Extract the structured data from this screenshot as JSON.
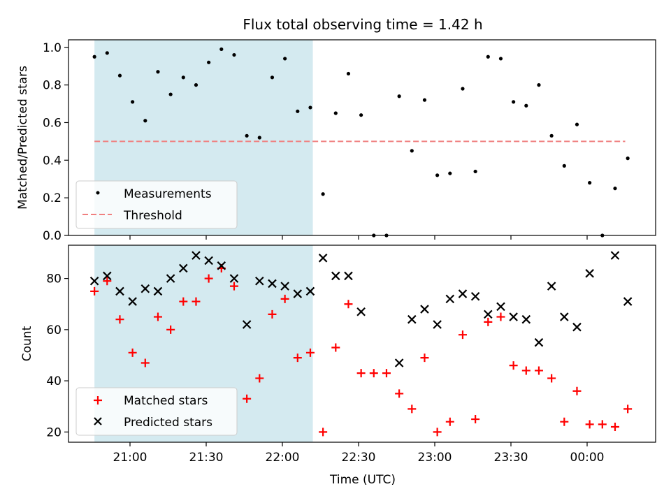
{
  "chart_data": [
    {
      "type": "scatter",
      "title": "Flux total observing time = 1.42 h",
      "xlabel": "",
      "ylabel": "Matched/Predicted stars",
      "ylim": [
        0,
        1.04
      ],
      "yticks": [
        "0.0",
        "0.2",
        "0.4",
        "0.6",
        "0.8",
        "1.0"
      ],
      "shaded_region": {
        "x_start": "20:46",
        "x_end": "22:12",
        "color": "#d4eaf0"
      },
      "threshold": {
        "name": "Threshold",
        "value": 0.5,
        "x_start": "20:46",
        "x_end": "00:15",
        "color": "#f08080"
      },
      "legend": {
        "position": "lower-left",
        "entries": [
          "Measurements",
          "Threshold"
        ]
      },
      "series": [
        {
          "name": "Measurements",
          "color": "#000000",
          "points": [
            [
              "20:46",
              0.95
            ],
            [
              "20:51",
              0.97
            ],
            [
              "20:56",
              0.85
            ],
            [
              "21:01",
              0.71
            ],
            [
              "21:06",
              0.61
            ],
            [
              "21:11",
              0.87
            ],
            [
              "21:16",
              0.75
            ],
            [
              "21:21",
              0.84
            ],
            [
              "21:26",
              0.8
            ],
            [
              "21:31",
              0.92
            ],
            [
              "21:36",
              0.99
            ],
            [
              "21:41",
              0.96
            ],
            [
              "21:46",
              0.53
            ],
            [
              "21:51",
              0.52
            ],
            [
              "21:56",
              0.84
            ],
            [
              "22:01",
              0.94
            ],
            [
              "22:06",
              0.66
            ],
            [
              "22:11",
              0.68
            ],
            [
              "22:16",
              0.22
            ],
            [
              "22:21",
              0.65
            ],
            [
              "22:26",
              0.86
            ],
            [
              "22:31",
              0.64
            ],
            [
              "22:36",
              0.0
            ],
            [
              "22:41",
              0.0
            ],
            [
              "22:46",
              0.74
            ],
            [
              "22:51",
              0.45
            ],
            [
              "22:56",
              0.72
            ],
            [
              "23:01",
              0.32
            ],
            [
              "23:06",
              0.33
            ],
            [
              "23:11",
              0.78
            ],
            [
              "23:16",
              0.34
            ],
            [
              "23:21",
              0.95
            ],
            [
              "23:26",
              0.94
            ],
            [
              "23:31",
              0.71
            ],
            [
              "23:36",
              0.69
            ],
            [
              "23:41",
              0.8
            ],
            [
              "23:46",
              0.53
            ],
            [
              "23:51",
              0.37
            ],
            [
              "23:56",
              0.59
            ],
            [
              "00:01",
              0.28
            ],
            [
              "00:06",
              0.0
            ],
            [
              "00:11",
              0.25
            ],
            [
              "00:16",
              0.41
            ]
          ]
        }
      ]
    },
    {
      "type": "scatter",
      "title": "",
      "xlabel": "Time (UTC)",
      "ylabel": "Count",
      "ylim": [
        16,
        93
      ],
      "yticks": [
        "20",
        "40",
        "60",
        "80"
      ],
      "x_ticks": [
        "21:00",
        "21:30",
        "22:00",
        "22:30",
        "23:00",
        "23:30",
        "00:00"
      ],
      "shaded_region": {
        "x_start": "20:46",
        "x_end": "22:12",
        "color": "#d4eaf0"
      },
      "legend": {
        "position": "lower-left",
        "entries": [
          "Matched stars",
          "Predicted stars"
        ]
      },
      "series": [
        {
          "name": "Matched stars",
          "marker": "plus",
          "color": "#ff0000",
          "points": [
            [
              "20:46",
              75
            ],
            [
              "20:51",
              79
            ],
            [
              "20:56",
              64
            ],
            [
              "21:01",
              51
            ],
            [
              "21:06",
              47
            ],
            [
              "21:11",
              65
            ],
            [
              "21:16",
              60
            ],
            [
              "21:21",
              71
            ],
            [
              "21:26",
              71
            ],
            [
              "21:31",
              80
            ],
            [
              "21:36",
              84
            ],
            [
              "21:41",
              77
            ],
            [
              "21:46",
              33
            ],
            [
              "21:51",
              41
            ],
            [
              "21:56",
              66
            ],
            [
              "22:01",
              72
            ],
            [
              "22:06",
              49
            ],
            [
              "22:11",
              51
            ],
            [
              "22:16",
              20
            ],
            [
              "22:21",
              53
            ],
            [
              "22:26",
              70
            ],
            [
              "22:31",
              43
            ],
            [
              "22:36",
              43
            ],
            [
              "22:41",
              43
            ],
            [
              "22:46",
              35
            ],
            [
              "22:51",
              29
            ],
            [
              "22:56",
              49
            ],
            [
              "23:01",
              20
            ],
            [
              "23:06",
              24
            ],
            [
              "23:11",
              58
            ],
            [
              "23:16",
              25
            ],
            [
              "23:21",
              63
            ],
            [
              "23:26",
              65
            ],
            [
              "23:31",
              46
            ],
            [
              "23:36",
              44
            ],
            [
              "23:41",
              44
            ],
            [
              "23:46",
              41
            ],
            [
              "23:51",
              24
            ],
            [
              "23:56",
              36
            ],
            [
              "00:01",
              23
            ],
            [
              "00:06",
              23
            ],
            [
              "00:11",
              22
            ],
            [
              "00:16",
              29
            ]
          ]
        },
        {
          "name": "Predicted stars",
          "marker": "x",
          "color": "#000000",
          "points": [
            [
              "20:46",
              79
            ],
            [
              "20:51",
              81
            ],
            [
              "20:56",
              75
            ],
            [
              "21:01",
              71
            ],
            [
              "21:06",
              76
            ],
            [
              "21:11",
              75
            ],
            [
              "21:16",
              80
            ],
            [
              "21:21",
              84
            ],
            [
              "21:26",
              89
            ],
            [
              "21:31",
              87
            ],
            [
              "21:36",
              85
            ],
            [
              "21:41",
              80
            ],
            [
              "21:46",
              62
            ],
            [
              "21:51",
              79
            ],
            [
              "21:56",
              78
            ],
            [
              "22:01",
              77
            ],
            [
              "22:06",
              74
            ],
            [
              "22:11",
              75
            ],
            [
              "22:16",
              88
            ],
            [
              "22:21",
              81
            ],
            [
              "22:26",
              81
            ],
            [
              "22:31",
              67
            ],
            [
              "22:46",
              47
            ],
            [
              "22:51",
              64
            ],
            [
              "22:56",
              68
            ],
            [
              "23:01",
              62
            ],
            [
              "23:06",
              72
            ],
            [
              "23:11",
              74
            ],
            [
              "23:16",
              73
            ],
            [
              "23:21",
              66
            ],
            [
              "23:26",
              69
            ],
            [
              "23:31",
              65
            ],
            [
              "23:36",
              64
            ],
            [
              "23:41",
              55
            ],
            [
              "23:46",
              77
            ],
            [
              "23:51",
              65
            ],
            [
              "23:56",
              61
            ],
            [
              "00:01",
              82
            ],
            [
              "00:11",
              89
            ],
            [
              "00:16",
              71
            ]
          ]
        }
      ]
    }
  ]
}
